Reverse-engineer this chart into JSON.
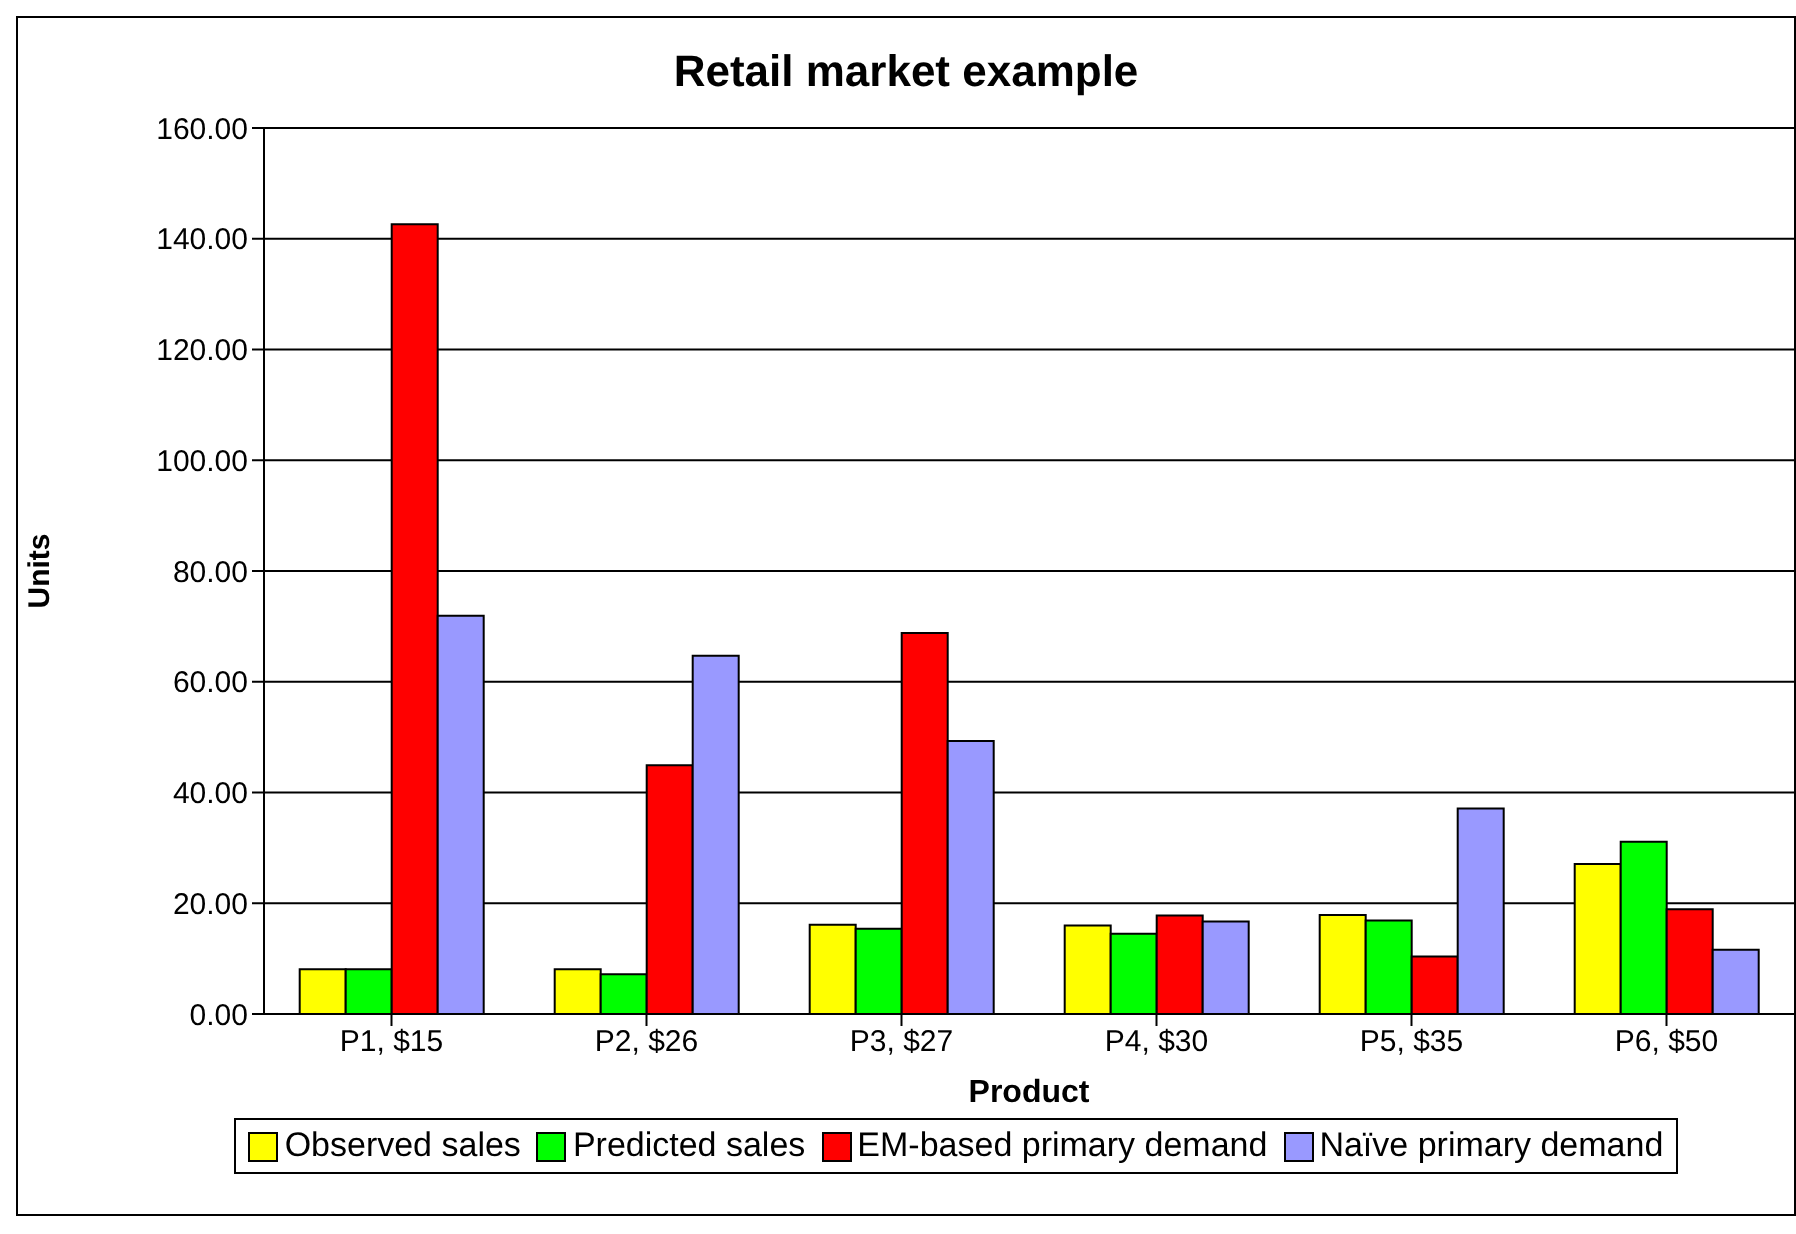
{
  "chart_data": {
    "type": "bar",
    "title": "Retail market example",
    "xlabel": "Product",
    "ylabel": "Units",
    "categories": [
      "P1, $15",
      "P2, $26",
      "P3, $27",
      "P4, $30",
      "P5, $35",
      "P6, $50"
    ],
    "series": [
      {
        "name": "Observed sales",
        "color": "#ffff00",
        "values": [
          8.1,
          8.1,
          16.1,
          16.0,
          17.9,
          27.1
        ]
      },
      {
        "name": "Predicted sales",
        "color": "#00ff00",
        "values": [
          8.1,
          7.2,
          15.4,
          14.5,
          16.9,
          31.1
        ]
      },
      {
        "name": "EM-based primary demand",
        "color": "#ff0000",
        "values": [
          142.6,
          44.9,
          68.8,
          17.8,
          10.4,
          18.9
        ]
      },
      {
        "name": "Naïve primary demand",
        "color": "#9999ff",
        "values": [
          71.9,
          64.7,
          49.3,
          16.7,
          37.1,
          11.6
        ]
      }
    ],
    "ylim": [
      0,
      160
    ],
    "yticks": [
      {
        "value": 0,
        "label": "0.00"
      },
      {
        "value": 20,
        "label": "20.00"
      },
      {
        "value": 40,
        "label": "40.00"
      },
      {
        "value": 60,
        "label": "60.00"
      },
      {
        "value": 80,
        "label": "80.00"
      },
      {
        "value": 100,
        "label": "100.00"
      },
      {
        "value": 120,
        "label": "120.00"
      },
      {
        "value": 140,
        "label": "140.00"
      },
      {
        "value": 160,
        "label": "160.00"
      }
    ],
    "grid": "y",
    "legend": "bottom"
  }
}
